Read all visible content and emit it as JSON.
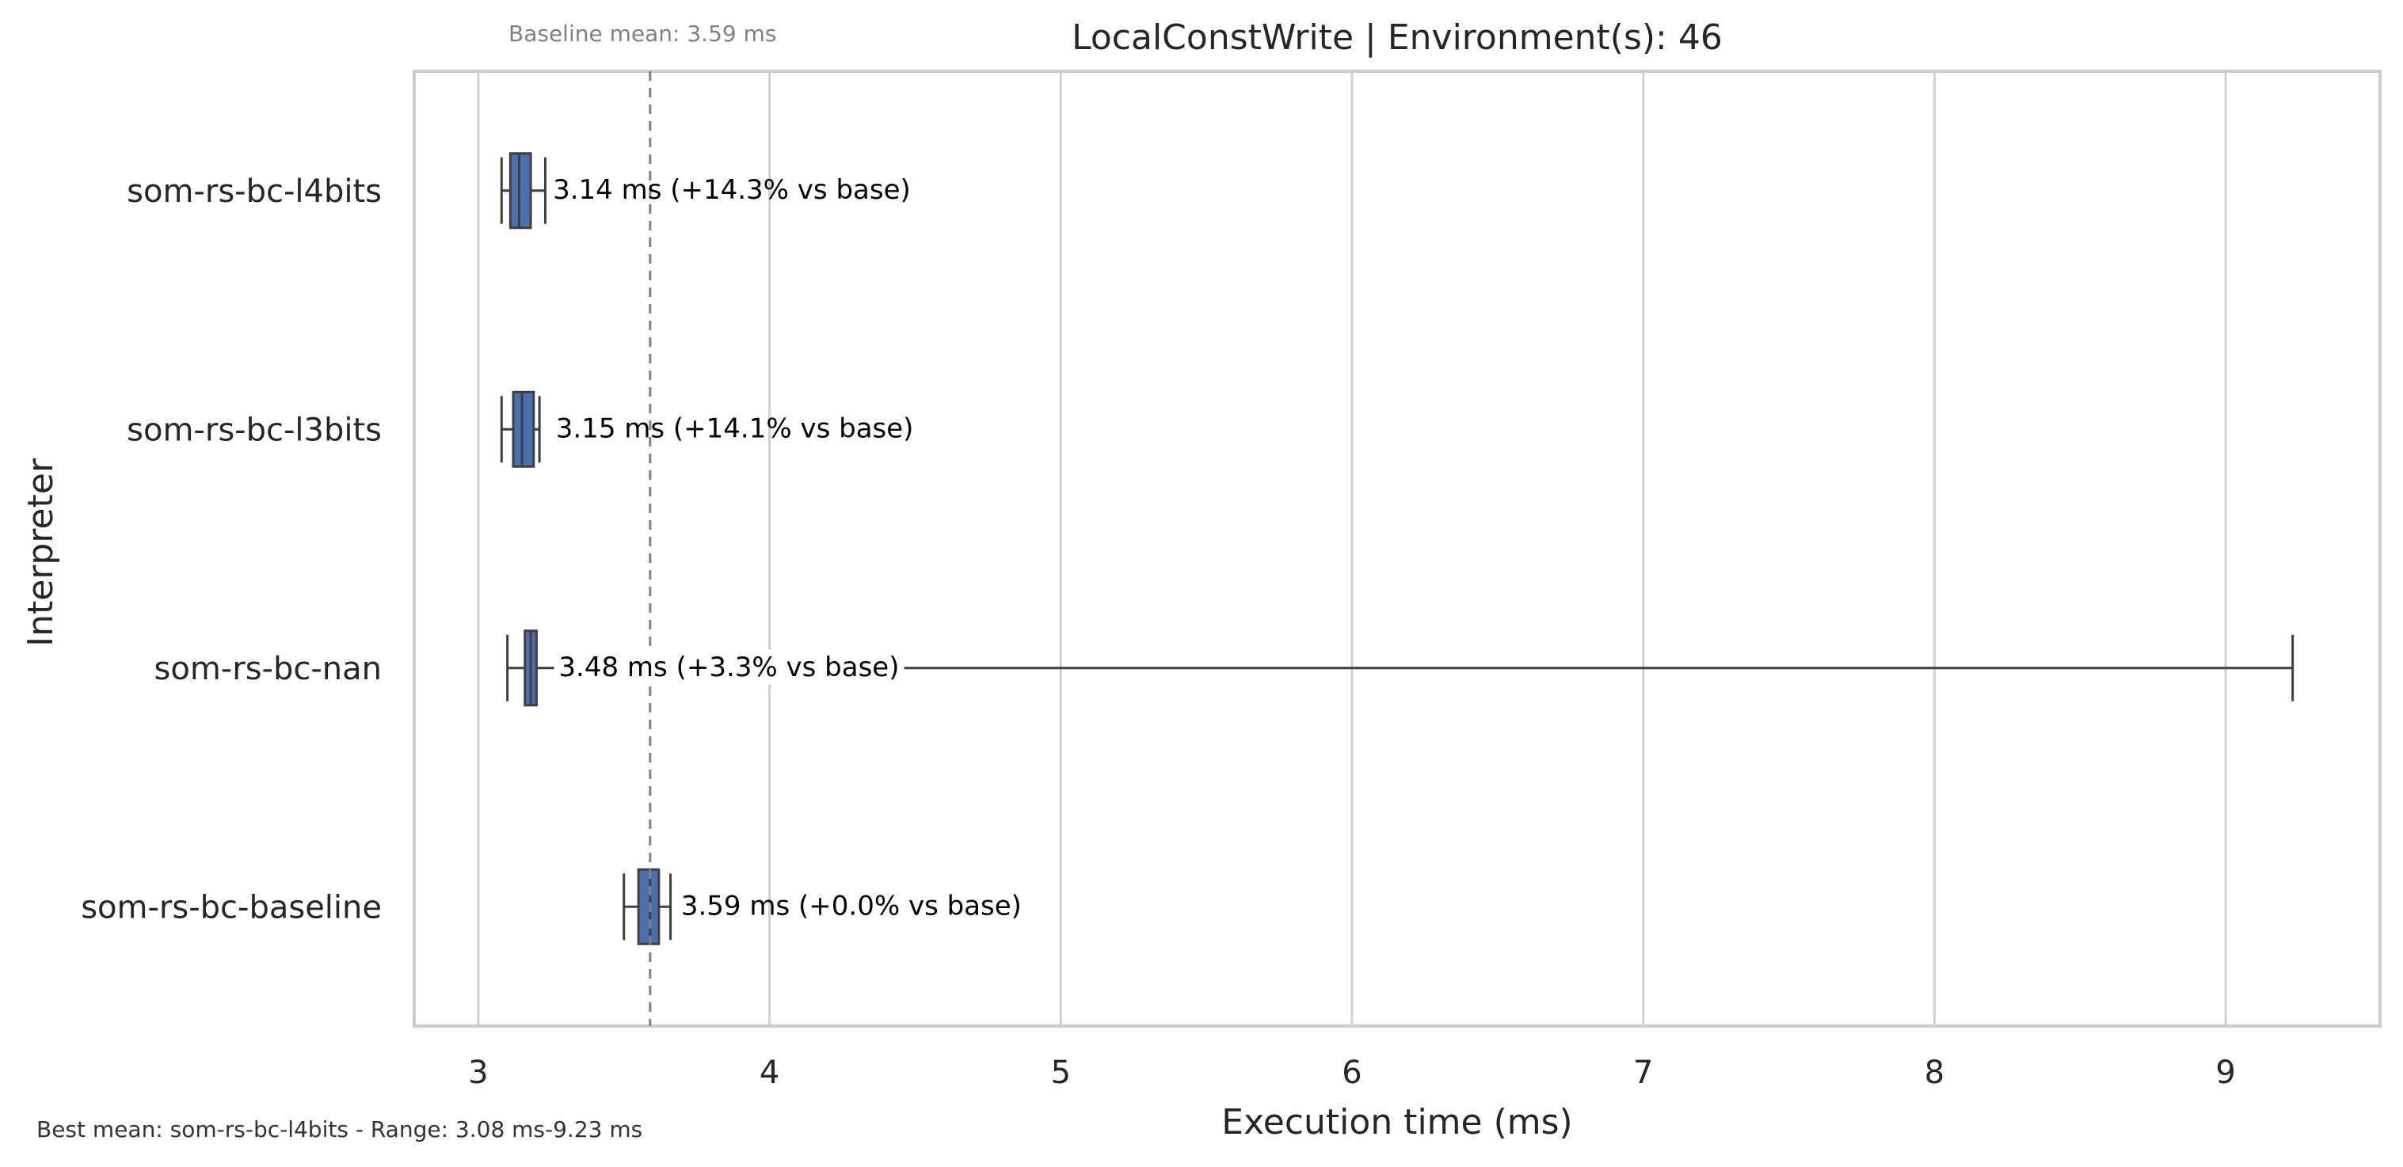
{
  "chart_data": {
    "type": "boxplot",
    "title": "LocalConstWrite | Environment(s): 46",
    "xlabel": "Execution time (ms)",
    "ylabel": "Interpreter",
    "xlim": [
      2.78,
      9.53
    ],
    "xticks": [
      3,
      4,
      5,
      6,
      7,
      8,
      9
    ],
    "grid": "vertical",
    "baseline": {
      "value": 3.59,
      "label": "Baseline mean: 3.59 ms"
    },
    "footer": "Best mean: som-rs-bc-l4bits - Range: 3.08 ms-9.23 ms",
    "colors": {
      "box": "#4c6fb0",
      "line": "#3f3f3f",
      "grid": "#d0d0d0",
      "frame": "#cccccc",
      "baseline": "#808080"
    },
    "categories": [
      "som-rs-bc-l4bits",
      "som-rs-bc-l3bits",
      "som-rs-bc-nan",
      "som-rs-bc-baseline"
    ],
    "boxes": [
      {
        "name": "som-rs-bc-l4bits",
        "whisker_low": 3.08,
        "q1": 3.11,
        "median": 3.14,
        "q3": 3.18,
        "whisker_high": 3.23,
        "annotation": "3.14 ms  (+14.3% vs base)"
      },
      {
        "name": "som-rs-bc-l3bits",
        "whisker_low": 3.08,
        "q1": 3.12,
        "median": 3.15,
        "q3": 3.19,
        "whisker_high": 3.21,
        "annotation": "3.15 ms  (+14.1% vs base)"
      },
      {
        "name": "som-rs-bc-nan",
        "whisker_low": 3.1,
        "q1": 3.16,
        "median": 3.18,
        "q3": 3.2,
        "whisker_high": 9.23,
        "annotation": "3.48 ms  (+3.3% vs base)"
      },
      {
        "name": "som-rs-bc-baseline",
        "whisker_low": 3.5,
        "q1": 3.55,
        "median": 3.59,
        "q3": 3.62,
        "whisker_high": 3.66,
        "annotation": "3.59 ms  (+0.0% vs base)"
      }
    ]
  }
}
